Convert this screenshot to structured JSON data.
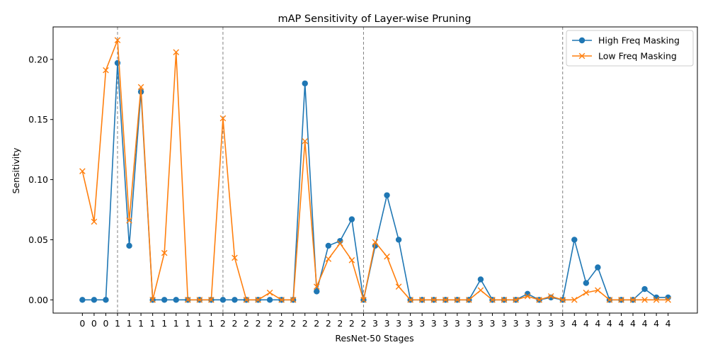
{
  "chart_data": {
    "type": "line",
    "title": "mAP Sensitivity of Layer-wise Pruning",
    "xlabel": "ResNet-50 Stages",
    "ylabel": "Sensitivity",
    "categories": [
      "0",
      "0",
      "0",
      "1",
      "1",
      "1",
      "1",
      "1",
      "1",
      "1",
      "1",
      "1",
      "2",
      "2",
      "2",
      "2",
      "2",
      "2",
      "2",
      "2",
      "2",
      "2",
      "2",
      "2",
      "2",
      "3",
      "3",
      "3",
      "3",
      "3",
      "3",
      "3",
      "3",
      "3",
      "3",
      "3",
      "3",
      "3",
      "3",
      "3",
      "3",
      "3",
      "4",
      "4",
      "4",
      "4",
      "4",
      "4",
      "4",
      "4",
      "4"
    ],
    "y_ticks": [
      0.0,
      0.05,
      0.1,
      0.15,
      0.2
    ],
    "y_tick_labels": [
      "0.00",
      "0.05",
      "0.10",
      "0.15",
      "0.20"
    ],
    "ylim": [
      -0.011,
      0.227
    ],
    "stage_boundaries": [
      3,
      12,
      24,
      41
    ],
    "grid": false,
    "legend_position": "top-right",
    "series": [
      {
        "name": "High Freq Masking",
        "color": "#1f77b4",
        "marker": "circle",
        "values": [
          0,
          0,
          0,
          0.197,
          0.045,
          0.173,
          0,
          0,
          0,
          0,
          0,
          0,
          0,
          0,
          0,
          0,
          0,
          0,
          0,
          0.18,
          0.007,
          0.045,
          0.049,
          0.067,
          0,
          0.045,
          0.087,
          0.05,
          0,
          0,
          0,
          0,
          0,
          0,
          0.017,
          0,
          0,
          0,
          0.005,
          0,
          0.002,
          0,
          0.05,
          0.014,
          0.027,
          0,
          0,
          0,
          0.009,
          0.002,
          0.002
        ]
      },
      {
        "name": "Low Freq Masking",
        "color": "#ff7f0e",
        "marker": "x",
        "values": [
          0.107,
          0.065,
          0.191,
          0.216,
          0.066,
          0.177,
          0,
          0.039,
          0.206,
          0,
          0,
          0,
          0.151,
          0.035,
          0,
          0,
          0.006,
          0,
          0,
          0.132,
          0.011,
          0.034,
          0.047,
          0.033,
          0,
          0.048,
          0.036,
          0.011,
          0,
          0,
          0,
          0,
          0,
          0,
          0.008,
          0,
          0,
          0,
          0.003,
          0,
          0.003,
          0,
          0,
          0.006,
          0.008,
          0,
          0,
          0,
          0,
          0,
          0
        ]
      }
    ]
  }
}
